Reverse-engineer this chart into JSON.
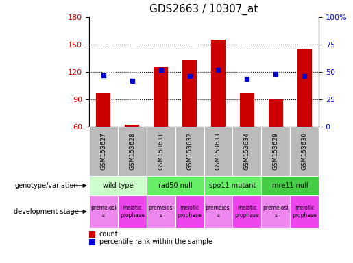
{
  "title": "GDS2663 / 10307_at",
  "samples": [
    "GSM153627",
    "GSM153628",
    "GSM153631",
    "GSM153632",
    "GSM153633",
    "GSM153634",
    "GSM153629",
    "GSM153630"
  ],
  "counts": [
    97,
    62,
    125,
    133,
    155,
    97,
    90,
    145
  ],
  "percentiles": [
    47,
    42,
    52,
    46,
    52,
    44,
    48,
    46
  ],
  "ylim_left": [
    60,
    180
  ],
  "ylim_right": [
    0,
    100
  ],
  "yticks_left": [
    60,
    90,
    120,
    150,
    180
  ],
  "yticks_right": [
    0,
    25,
    50,
    75,
    100
  ],
  "bar_color": "#cc0000",
  "dot_color": "#0000cc",
  "genotype_groups": [
    {
      "label": "wild type",
      "start": 0,
      "end": 2,
      "color": "#ccffcc"
    },
    {
      "label": "rad50 null",
      "start": 2,
      "end": 4,
      "color": "#66ee66"
    },
    {
      "label": "spo11 mutant",
      "start": 4,
      "end": 6,
      "color": "#66ee66"
    },
    {
      "label": "mre11 null",
      "start": 6,
      "end": 8,
      "color": "#44cc44"
    }
  ],
  "dev_stages": [
    {
      "label": "premeiosi\ns",
      "start": 0,
      "end": 1,
      "color": "#ee88ee"
    },
    {
      "label": "meiotic\nprophase",
      "start": 1,
      "end": 2,
      "color": "#ee44ee"
    },
    {
      "label": "premeiosi\ns",
      "start": 2,
      "end": 3,
      "color": "#ee88ee"
    },
    {
      "label": "meiotic\nprophase",
      "start": 3,
      "end": 4,
      "color": "#ee44ee"
    },
    {
      "label": "premeiosi\ns",
      "start": 4,
      "end": 5,
      "color": "#ee88ee"
    },
    {
      "label": "meiotic\nprophase",
      "start": 5,
      "end": 6,
      "color": "#ee44ee"
    },
    {
      "label": "premeiosi\ns",
      "start": 6,
      "end": 7,
      "color": "#ee88ee"
    },
    {
      "label": "meiotic\nprophase",
      "start": 7,
      "end": 8,
      "color": "#ee44ee"
    }
  ],
  "label_genotype": "genotype/variation",
  "label_devstage": "development stage",
  "legend_count": "count",
  "legend_pct": "percentile rank within the sample",
  "background_color": "#ffffff",
  "gridline_color": "#000000",
  "title_fontsize": 11,
  "tick_fontsize": 8,
  "sample_bg": "#bbbbbb"
}
